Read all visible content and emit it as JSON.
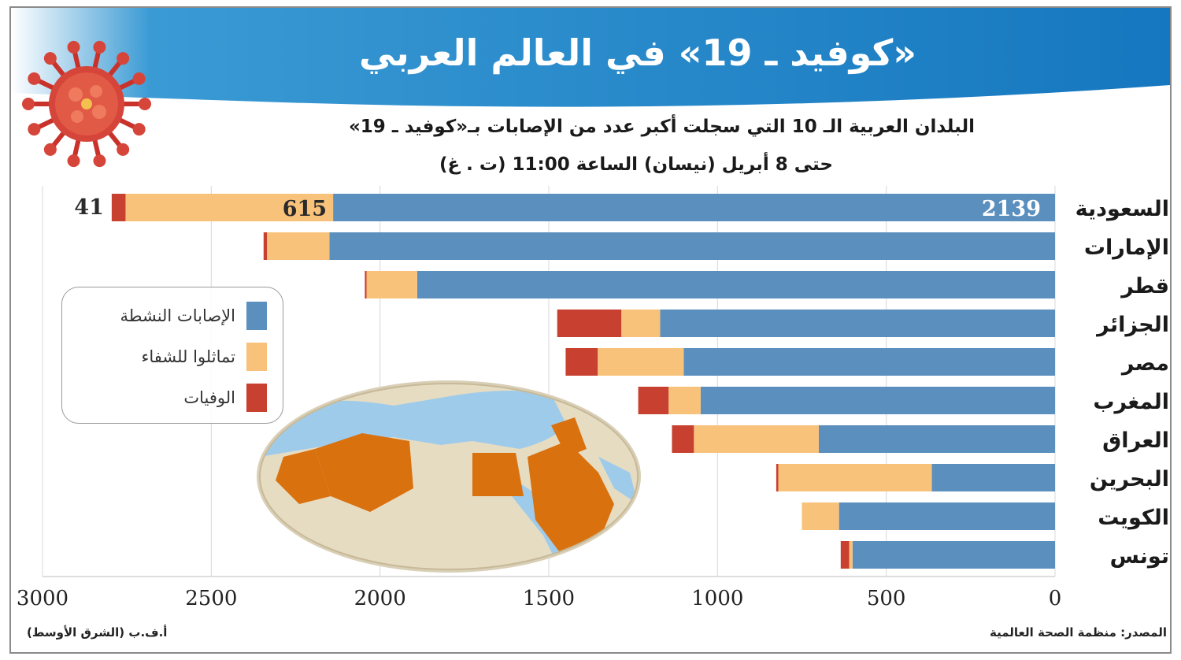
{
  "title": "«كوفيد ـ 19» في العالم العربي",
  "subtitle_line1": "البلدان العربية الـ 10 التي سجلت أكبر عدد من الإصابات بـ«كوفيد ـ 19»",
  "subtitle_line2": "حتى 8 أبريل (نيسان) الساعة 11:00 (ت . غ)",
  "source": "المصدر: منظمة الصحة العالمية",
  "credit": "أ.ف.ب (الشرق الأوسط)",
  "legend": {
    "active": "الإصابات النشطة",
    "recovered": "تماثلوا للشفاء",
    "deaths": "الوفيات"
  },
  "colors": {
    "header_blue": "#1f86c6",
    "active": "#5b8fbe",
    "recovered": "#f8c27a",
    "deaths": "#c8402f",
    "map_land": "#e6dcc2",
    "map_highlight": "#d9710f",
    "map_water": "#9fcbeb"
  },
  "chart_data": {
    "type": "bar",
    "orientation": "horizontal-stacked",
    "categories": [
      "السعودية",
      "الإمارات",
      "قطر",
      "الجزائر",
      "مصر",
      "المغرب",
      "العراق",
      "البحرين",
      "الكويت",
      "تونس"
    ],
    "series": [
      {
        "name": "الإصابات النشطة",
        "values": [
          2139,
          2150,
          1890,
          1170,
          1100,
          1050,
          700,
          365,
          640,
          600
        ]
      },
      {
        "name": "تماثلوا للشفاء",
        "values": [
          615,
          185,
          150,
          115,
          255,
          95,
          370,
          455,
          110,
          10
        ]
      },
      {
        "name": "الوفيات",
        "values": [
          41,
          10,
          5,
          190,
          95,
          90,
          65,
          6,
          0,
          25
        ]
      }
    ],
    "data_labels": [
      {
        "category": "السعودية",
        "active": "2139",
        "recovered": "615",
        "deaths": "41"
      }
    ],
    "xlim": [
      0,
      3000
    ],
    "x_direction": "right-to-left",
    "x_ticks": [
      "0",
      "500",
      "1000",
      "1500",
      "2000",
      "2500",
      "3000"
    ],
    "grid": true
  }
}
